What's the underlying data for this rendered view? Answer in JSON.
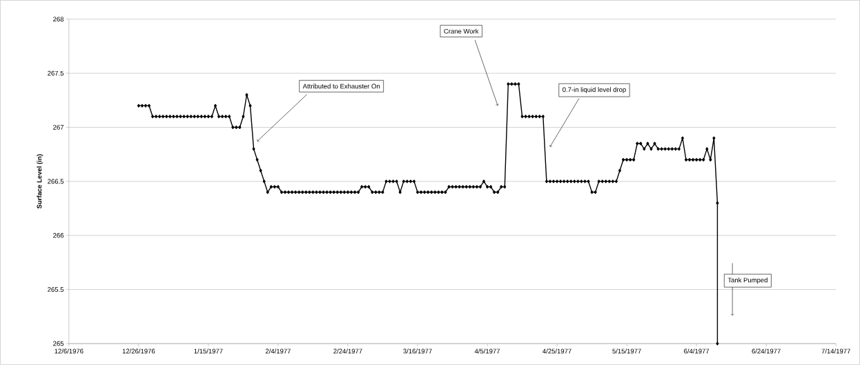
{
  "chart_data": {
    "type": "line",
    "ylabel": "Surface Level (in)",
    "color": "#000000",
    "marker": "diamond",
    "line_style": "solid",
    "grid": "y",
    "x": [
      "1976-12-26",
      "1976-12-27",
      "1976-12-28",
      "1976-12-29",
      "1976-12-30",
      "1976-12-31",
      "1977-01-01",
      "1977-01-02",
      "1977-01-03",
      "1977-01-04",
      "1977-01-05",
      "1977-01-06",
      "1977-01-07",
      "1977-01-08",
      "1977-01-09",
      "1977-01-10",
      "1977-01-11",
      "1977-01-12",
      "1977-01-13",
      "1977-01-14",
      "1977-01-15",
      "1977-01-16",
      "1977-01-17",
      "1977-01-18",
      "1977-01-19",
      "1977-01-20",
      "1977-01-21",
      "1977-01-22",
      "1977-01-23",
      "1977-01-24",
      "1977-01-25",
      "1977-01-26",
      "1977-01-27",
      "1977-01-28",
      "1977-01-29",
      "1977-01-30",
      "1977-01-31",
      "1977-02-01",
      "1977-02-02",
      "1977-02-03",
      "1977-02-04",
      "1977-02-05",
      "1977-02-06",
      "1977-02-07",
      "1977-02-08",
      "1977-02-09",
      "1977-02-10",
      "1977-02-11",
      "1977-02-12",
      "1977-02-13",
      "1977-02-14",
      "1977-02-15",
      "1977-02-16",
      "1977-02-17",
      "1977-02-18",
      "1977-02-19",
      "1977-02-20",
      "1977-02-21",
      "1977-02-22",
      "1977-02-23",
      "1977-02-24",
      "1977-02-25",
      "1977-02-26",
      "1977-02-27",
      "1977-02-28",
      "1977-03-01",
      "1977-03-02",
      "1977-03-03",
      "1977-03-04",
      "1977-03-05",
      "1977-03-06",
      "1977-03-07",
      "1977-03-08",
      "1977-03-09",
      "1977-03-10",
      "1977-03-11",
      "1977-03-12",
      "1977-03-13",
      "1977-03-14",
      "1977-03-15",
      "1977-03-16",
      "1977-03-17",
      "1977-03-18",
      "1977-03-19",
      "1977-03-20",
      "1977-03-21",
      "1977-03-22",
      "1977-03-23",
      "1977-03-24",
      "1977-03-25",
      "1977-03-26",
      "1977-03-27",
      "1977-03-28",
      "1977-03-29",
      "1977-03-30",
      "1977-03-31",
      "1977-04-01",
      "1977-04-02",
      "1977-04-03",
      "1977-04-04",
      "1977-04-05",
      "1977-04-06",
      "1977-04-07",
      "1977-04-08",
      "1977-04-09",
      "1977-04-10",
      "1977-04-11",
      "1977-04-12",
      "1977-04-13",
      "1977-04-14",
      "1977-04-15",
      "1977-04-16",
      "1977-04-17",
      "1977-04-18",
      "1977-04-19",
      "1977-04-20",
      "1977-04-21",
      "1977-04-22",
      "1977-04-23",
      "1977-04-24",
      "1977-04-25",
      "1977-04-26",
      "1977-04-27",
      "1977-04-28",
      "1977-04-29",
      "1977-04-30",
      "1977-05-01",
      "1977-05-02",
      "1977-05-03",
      "1977-05-04",
      "1977-05-05",
      "1977-05-06",
      "1977-05-07",
      "1977-05-08",
      "1977-05-09",
      "1977-05-10",
      "1977-05-11",
      "1977-05-12",
      "1977-05-13",
      "1977-05-14",
      "1977-05-15",
      "1977-05-16",
      "1977-05-17",
      "1977-05-18",
      "1977-05-19",
      "1977-05-20",
      "1977-05-21",
      "1977-05-22",
      "1977-05-23",
      "1977-05-24",
      "1977-05-25",
      "1977-05-26",
      "1977-05-27",
      "1977-05-28",
      "1977-05-29",
      "1977-05-30",
      "1977-05-31",
      "1977-06-01",
      "1977-06-02",
      "1977-06-03",
      "1977-06-04",
      "1977-06-05",
      "1977-06-06",
      "1977-06-07",
      "1977-06-08",
      "1977-06-09",
      "1977-06-10",
      "1977-06-10"
    ],
    "values": [
      267.2,
      267.2,
      267.2,
      267.2,
      267.1,
      267.1,
      267.1,
      267.1,
      267.1,
      267.1,
      267.1,
      267.1,
      267.1,
      267.1,
      267.1,
      267.1,
      267.1,
      267.1,
      267.1,
      267.1,
      267.1,
      267.1,
      267.2,
      267.1,
      267.1,
      267.1,
      267.1,
      267.0,
      267.0,
      267.0,
      267.1,
      267.3,
      267.2,
      266.8,
      266.7,
      266.6,
      266.5,
      266.4,
      266.45,
      266.45,
      266.45,
      266.4,
      266.4,
      266.4,
      266.4,
      266.4,
      266.4,
      266.4,
      266.4,
      266.4,
      266.4,
      266.4,
      266.4,
      266.4,
      266.4,
      266.4,
      266.4,
      266.4,
      266.4,
      266.4,
      266.4,
      266.4,
      266.4,
      266.4,
      266.45,
      266.45,
      266.45,
      266.4,
      266.4,
      266.4,
      266.4,
      266.5,
      266.5,
      266.5,
      266.5,
      266.4,
      266.5,
      266.5,
      266.5,
      266.5,
      266.4,
      266.4,
      266.4,
      266.4,
      266.4,
      266.4,
      266.4,
      266.4,
      266.4,
      266.45,
      266.45,
      266.45,
      266.45,
      266.45,
      266.45,
      266.45,
      266.45,
      266.45,
      266.45,
      266.5,
      266.45,
      266.45,
      266.4,
      266.4,
      266.45,
      266.45,
      267.4,
      267.4,
      267.4,
      267.4,
      267.1,
      267.1,
      267.1,
      267.1,
      267.1,
      267.1,
      267.1,
      266.5,
      266.5,
      266.5,
      266.5,
      266.5,
      266.5,
      266.5,
      266.5,
      266.5,
      266.5,
      266.5,
      266.5,
      266.5,
      266.4,
      266.4,
      266.5,
      266.5,
      266.5,
      266.5,
      266.5,
      266.5,
      266.6,
      266.7,
      266.7,
      266.7,
      266.7,
      266.85,
      266.85,
      266.8,
      266.85,
      266.8,
      266.85,
      266.8,
      266.8,
      266.8,
      266.8,
      266.8,
      266.8,
      266.8,
      266.9,
      266.7,
      266.7,
      266.7,
      266.7,
      266.7,
      266.7,
      266.8,
      266.7,
      266.9,
      266.3,
      265
    ],
    "xlim": [
      "1976-12-06",
      "1977-07-14"
    ],
    "xticks": [
      {
        "value": "1976-12-06",
        "label": "12/6/1976"
      },
      {
        "value": "1976-12-26",
        "label": "12/26/1976"
      },
      {
        "value": "1977-01-15",
        "label": "1/15/1977"
      },
      {
        "value": "1977-02-04",
        "label": "2/4/1977"
      },
      {
        "value": "1977-02-24",
        "label": "2/24/1977"
      },
      {
        "value": "1977-03-16",
        "label": "3/16/1977"
      },
      {
        "value": "1977-04-05",
        "label": "4/5/1977"
      },
      {
        "value": "1977-04-25",
        "label": "4/25/1977"
      },
      {
        "value": "1977-05-15",
        "label": "5/15/1977"
      },
      {
        "value": "1977-06-04",
        "label": "6/4/1977"
      },
      {
        "value": "1977-06-24",
        "label": "6/24/1977"
      },
      {
        "value": "1977-07-14",
        "label": "7/14/1977"
      }
    ],
    "ylim": [
      265,
      268
    ],
    "yticks": [
      265,
      265.5,
      266,
      266.5,
      267,
      267.5,
      268
    ],
    "annotations": [
      {
        "text": "Attributed to Exhauster On",
        "x": "1977-01-29",
        "y": 266.87
      },
      {
        "text": "Crane Work",
        "x": "1977-04-08",
        "y": 267.2
      },
      {
        "text": "0.7-in liquid level drop",
        "x": "1977-04-23",
        "y": 266.82
      },
      "Tank Pumped"
    ]
  }
}
